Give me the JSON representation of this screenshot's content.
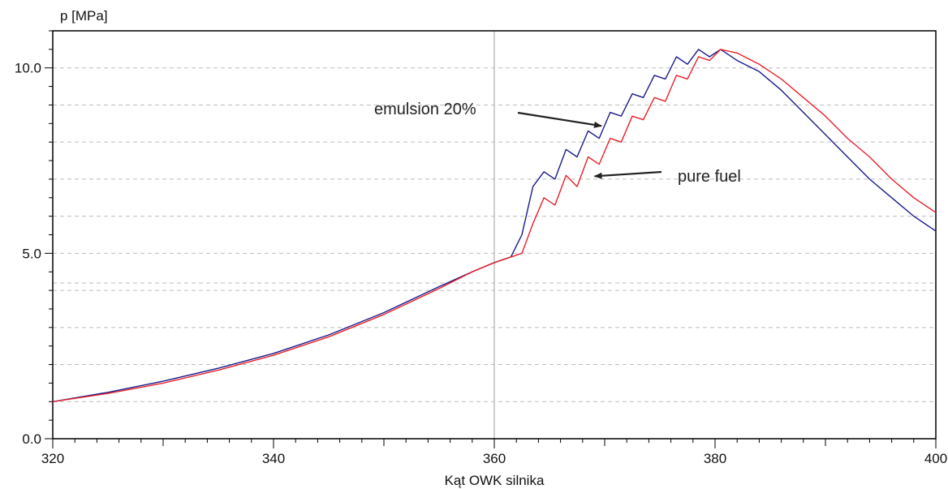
{
  "chart_data": {
    "type": "line",
    "xlabel": "Kąt OWK silnika",
    "ylabel": "p [MPa]",
    "xlim": [
      320,
      400
    ],
    "ylim": [
      0,
      11
    ],
    "x_ticks": [
      320,
      340,
      360,
      380,
      400
    ],
    "x_tick_labels": [
      "320",
      "340",
      "360",
      "380",
      "400"
    ],
    "y_ticks": [
      0,
      5,
      10
    ],
    "y_tick_labels": [
      "0.0",
      "5.0",
      "10.0"
    ],
    "y_gridlines": [
      1,
      2,
      3,
      4,
      4.2,
      5,
      6,
      7,
      8,
      9,
      10
    ],
    "vertical_marker_x": 360,
    "grid": true,
    "series": [
      {
        "name": "emulsion 20%",
        "color": "#1a1a8c",
        "x": [
          320,
          325,
          330,
          335,
          340,
          345,
          350,
          355,
          358,
          360,
          361.5,
          362.5,
          363.5,
          364.5,
          365.5,
          366.5,
          367.5,
          368.5,
          369.5,
          370.5,
          371.5,
          372.5,
          373.5,
          374.5,
          375.5,
          376.5,
          377.5,
          378.5,
          379.5,
          380.5,
          382,
          384,
          386,
          388,
          390,
          392,
          394,
          396,
          398,
          400
        ],
        "y": [
          1.0,
          1.25,
          1.55,
          1.9,
          2.3,
          2.8,
          3.4,
          4.1,
          4.5,
          4.75,
          4.9,
          5.5,
          6.8,
          7.2,
          7.0,
          7.8,
          7.6,
          8.3,
          8.1,
          8.8,
          8.7,
          9.3,
          9.2,
          9.8,
          9.7,
          10.3,
          10.1,
          10.5,
          10.3,
          10.5,
          10.2,
          9.9,
          9.4,
          8.8,
          8.2,
          7.6,
          7.0,
          6.5,
          6.0,
          5.6
        ]
      },
      {
        "name": "pure fuel",
        "color": "#e8202a",
        "x": [
          320,
          325,
          330,
          335,
          340,
          345,
          350,
          355,
          358,
          360,
          361.5,
          362.5,
          363.5,
          364.5,
          365.5,
          366.5,
          367.5,
          368.5,
          369.5,
          370.5,
          371.5,
          372.5,
          373.5,
          374.5,
          375.5,
          376.5,
          377.5,
          378.5,
          379.5,
          380.5,
          382,
          384,
          386,
          388,
          390,
          392,
          394,
          396,
          398,
          400
        ],
        "y": [
          1.0,
          1.22,
          1.5,
          1.85,
          2.25,
          2.75,
          3.35,
          4.05,
          4.5,
          4.75,
          4.9,
          5.0,
          5.8,
          6.5,
          6.3,
          7.1,
          6.8,
          7.6,
          7.4,
          8.1,
          8.0,
          8.7,
          8.6,
          9.2,
          9.1,
          9.8,
          9.7,
          10.3,
          10.2,
          10.5,
          10.4,
          10.1,
          9.7,
          9.2,
          8.7,
          8.1,
          7.6,
          7.0,
          6.5,
          6.1
        ]
      }
    ],
    "annotations": [
      {
        "text": "emulsion 20%",
        "target_series": "emulsion 20%",
        "target_x": 370,
        "target_y": 8.5
      },
      {
        "text": "pure fuel",
        "target_series": "pure fuel",
        "target_x": 368.5,
        "target_y": 7.1
      }
    ]
  }
}
